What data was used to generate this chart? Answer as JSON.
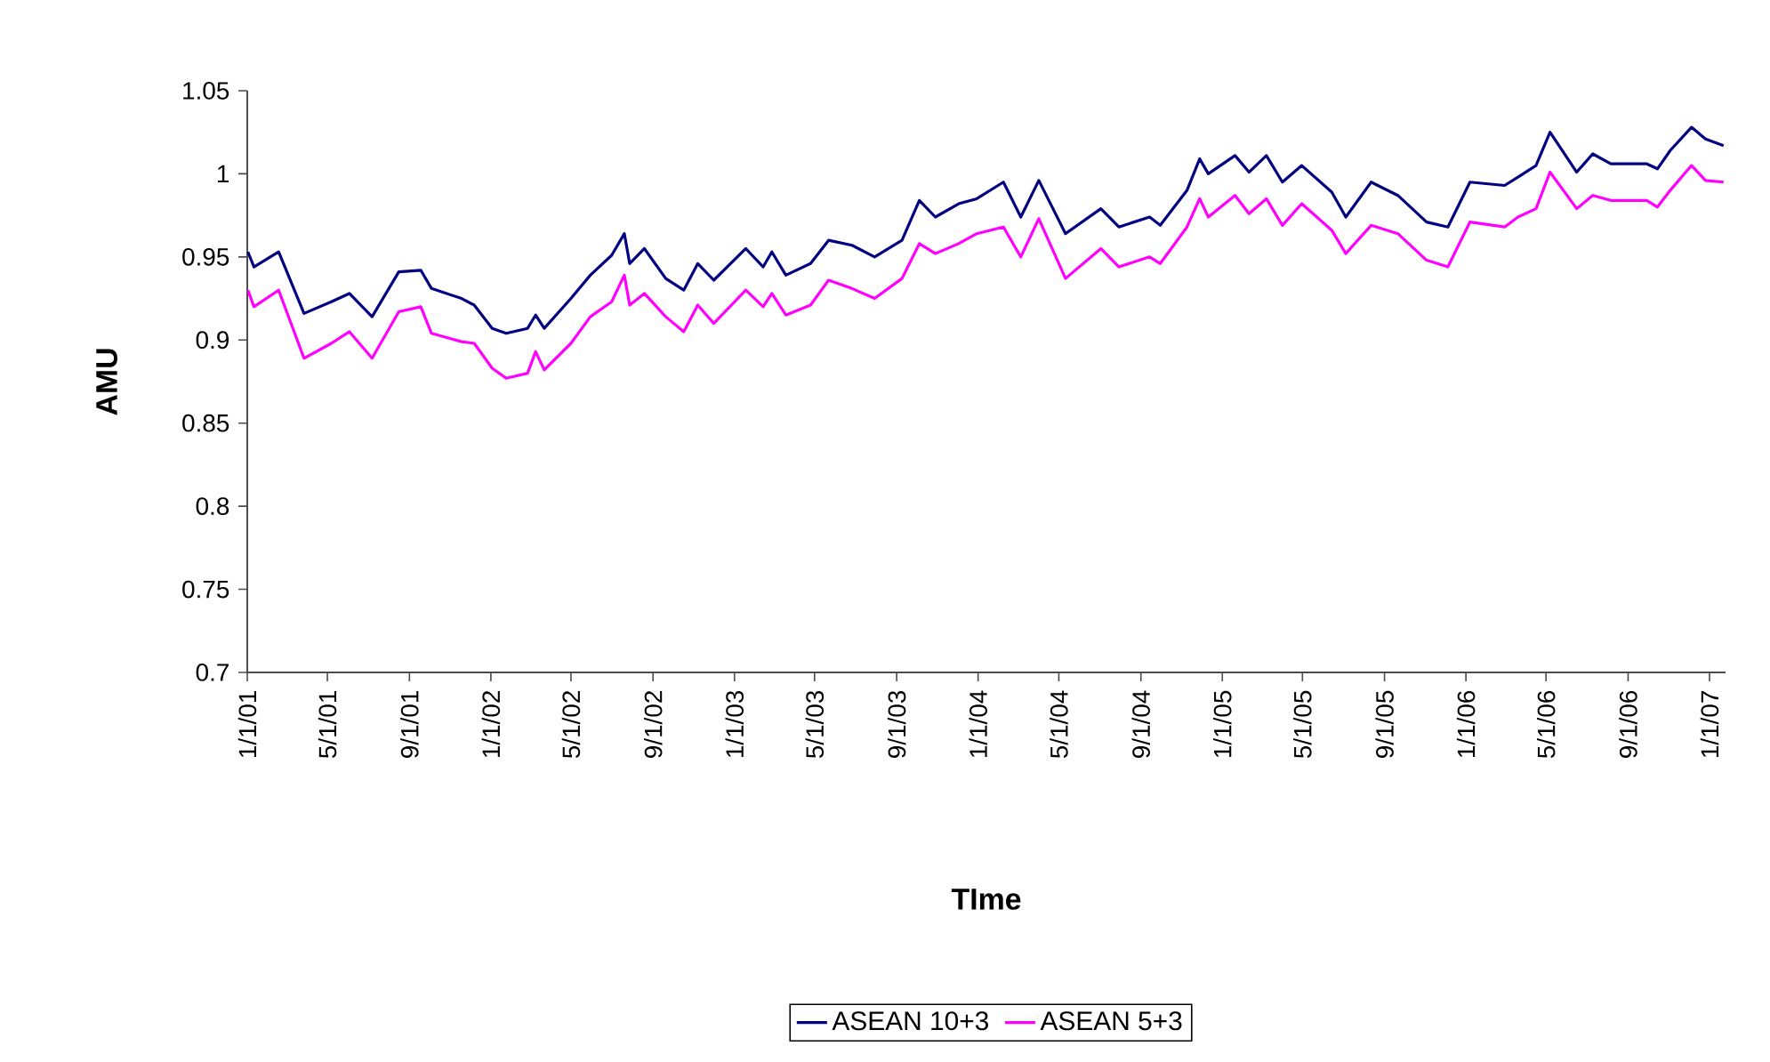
{
  "chart_data": {
    "type": "line",
    "xlabel": "TIme",
    "ylabel": "AMU",
    "x": [
      "2001-01-02",
      "2001-01-11",
      "2001-02-17",
      "2001-03-27",
      "2001-05-07",
      "2001-06-03",
      "2001-07-07",
      "2001-08-16",
      "2001-09-18",
      "2001-10-04",
      "2001-11-18",
      "2001-12-07",
      "2002-01-03",
      "2002-01-24",
      "2002-02-25",
      "2002-03-09",
      "2002-03-22",
      "2002-05-01",
      "2002-05-30",
      "2002-07-01",
      "2002-07-20",
      "2002-07-28",
      "2002-08-19",
      "2002-09-20",
      "2002-10-17",
      "2002-11-07",
      "2002-12-01",
      "2003-01-18",
      "2003-02-13",
      "2003-02-26",
      "2003-03-19",
      "2003-04-25",
      "2003-05-22",
      "2003-06-26",
      "2003-07-30",
      "2003-09-09",
      "2003-10-05",
      "2003-10-29",
      "2003-12-03",
      "2003-12-30",
      "2004-02-08",
      "2004-03-05",
      "2004-04-01",
      "2004-05-11",
      "2004-07-03",
      "2004-07-30",
      "2004-09-14",
      "2004-09-30",
      "2004-11-09",
      "2004-11-28",
      "2004-12-11",
      "2005-01-20",
      "2005-02-10",
      "2005-03-08",
      "2005-04-01",
      "2005-04-30",
      "2005-06-14",
      "2005-07-05",
      "2005-08-12",
      "2005-09-21",
      "2005-11-03",
      "2005-12-05",
      "2006-01-07",
      "2006-02-28",
      "2006-03-20",
      "2006-04-16",
      "2006-05-07",
      "2006-06-16",
      "2006-07-10",
      "2006-08-06",
      "2006-09-29",
      "2006-10-15",
      "2006-11-03",
      "2006-12-05",
      "2006-12-26",
      "2007-01-22"
    ],
    "series": [
      {
        "name": "ASEAN 10+3",
        "color": "#000080",
        "values": [
          0.953,
          0.944,
          0.953,
          0.916,
          0.923,
          0.928,
          0.914,
          0.941,
          0.942,
          0.931,
          0.925,
          0.921,
          0.907,
          0.904,
          0.907,
          0.915,
          0.907,
          0.925,
          0.939,
          0.951,
          0.964,
          0.946,
          0.955,
          0.937,
          0.93,
          0.946,
          0.936,
          0.955,
          0.944,
          0.953,
          0.939,
          0.946,
          0.96,
          0.957,
          0.95,
          0.96,
          0.984,
          0.974,
          0.982,
          0.985,
          0.995,
          0.974,
          0.996,
          0.964,
          0.979,
          0.968,
          0.974,
          0.969,
          0.99,
          1.009,
          1.0,
          1.011,
          1.001,
          1.011,
          0.995,
          1.005,
          0.989,
          0.974,
          0.995,
          0.987,
          0.971,
          0.968,
          0.995,
          0.993,
          0.998,
          1.005,
          1.025,
          1.001,
          1.012,
          1.006,
          1.006,
          1.003,
          1.014,
          1.028,
          1.021,
          1.017
        ]
      },
      {
        "name": "ASEAN 5+3",
        "color": "#ff00ff",
        "values": [
          0.93,
          0.92,
          0.93,
          0.889,
          0.898,
          0.905,
          0.889,
          0.917,
          0.92,
          0.904,
          0.899,
          0.898,
          0.883,
          0.877,
          0.88,
          0.893,
          0.882,
          0.898,
          0.914,
          0.923,
          0.939,
          0.921,
          0.928,
          0.914,
          0.905,
          0.921,
          0.91,
          0.93,
          0.92,
          0.928,
          0.915,
          0.921,
          0.936,
          0.931,
          0.925,
          0.937,
          0.958,
          0.952,
          0.958,
          0.964,
          0.968,
          0.95,
          0.973,
          0.937,
          0.955,
          0.944,
          0.95,
          0.946,
          0.968,
          0.985,
          0.974,
          0.987,
          0.976,
          0.985,
          0.969,
          0.982,
          0.966,
          0.952,
          0.969,
          0.964,
          0.948,
          0.944,
          0.971,
          0.968,
          0.974,
          0.979,
          1.001,
          0.979,
          0.987,
          0.984,
          0.984,
          0.98,
          0.99,
          1.005,
          0.996,
          0.995
        ]
      }
    ],
    "xlim": [
      "2001-01-01",
      "2007-01-25"
    ],
    "xticks": [
      {
        "value": "2001-01-01",
        "label": "1/1/01"
      },
      {
        "value": "2001-05-01",
        "label": "5/1/01"
      },
      {
        "value": "2001-09-01",
        "label": "9/1/01"
      },
      {
        "value": "2002-01-01",
        "label": "1/1/02"
      },
      {
        "value": "2002-05-01",
        "label": "5/1/02"
      },
      {
        "value": "2002-09-01",
        "label": "9/1/02"
      },
      {
        "value": "2003-01-01",
        "label": "1/1/03"
      },
      {
        "value": "2003-05-01",
        "label": "5/1/03"
      },
      {
        "value": "2003-09-01",
        "label": "9/1/03"
      },
      {
        "value": "2004-01-01",
        "label": "1/1/04"
      },
      {
        "value": "2004-05-01",
        "label": "5/1/04"
      },
      {
        "value": "2004-09-01",
        "label": "9/1/04"
      },
      {
        "value": "2005-01-01",
        "label": "1/1/05"
      },
      {
        "value": "2005-05-01",
        "label": "5/1/05"
      },
      {
        "value": "2005-09-01",
        "label": "9/1/05"
      },
      {
        "value": "2006-01-01",
        "label": "1/1/06"
      },
      {
        "value": "2006-05-01",
        "label": "5/1/06"
      },
      {
        "value": "2006-09-01",
        "label": "9/1/06"
      },
      {
        "value": "2007-01-01",
        "label": "1/1/07"
      }
    ],
    "ylim": [
      0.7,
      1.05
    ],
    "yticks": [
      0.7,
      0.75,
      0.8,
      0.85,
      0.9,
      0.95,
      1,
      1.05
    ],
    "grid": false,
    "legend": "bottom"
  }
}
